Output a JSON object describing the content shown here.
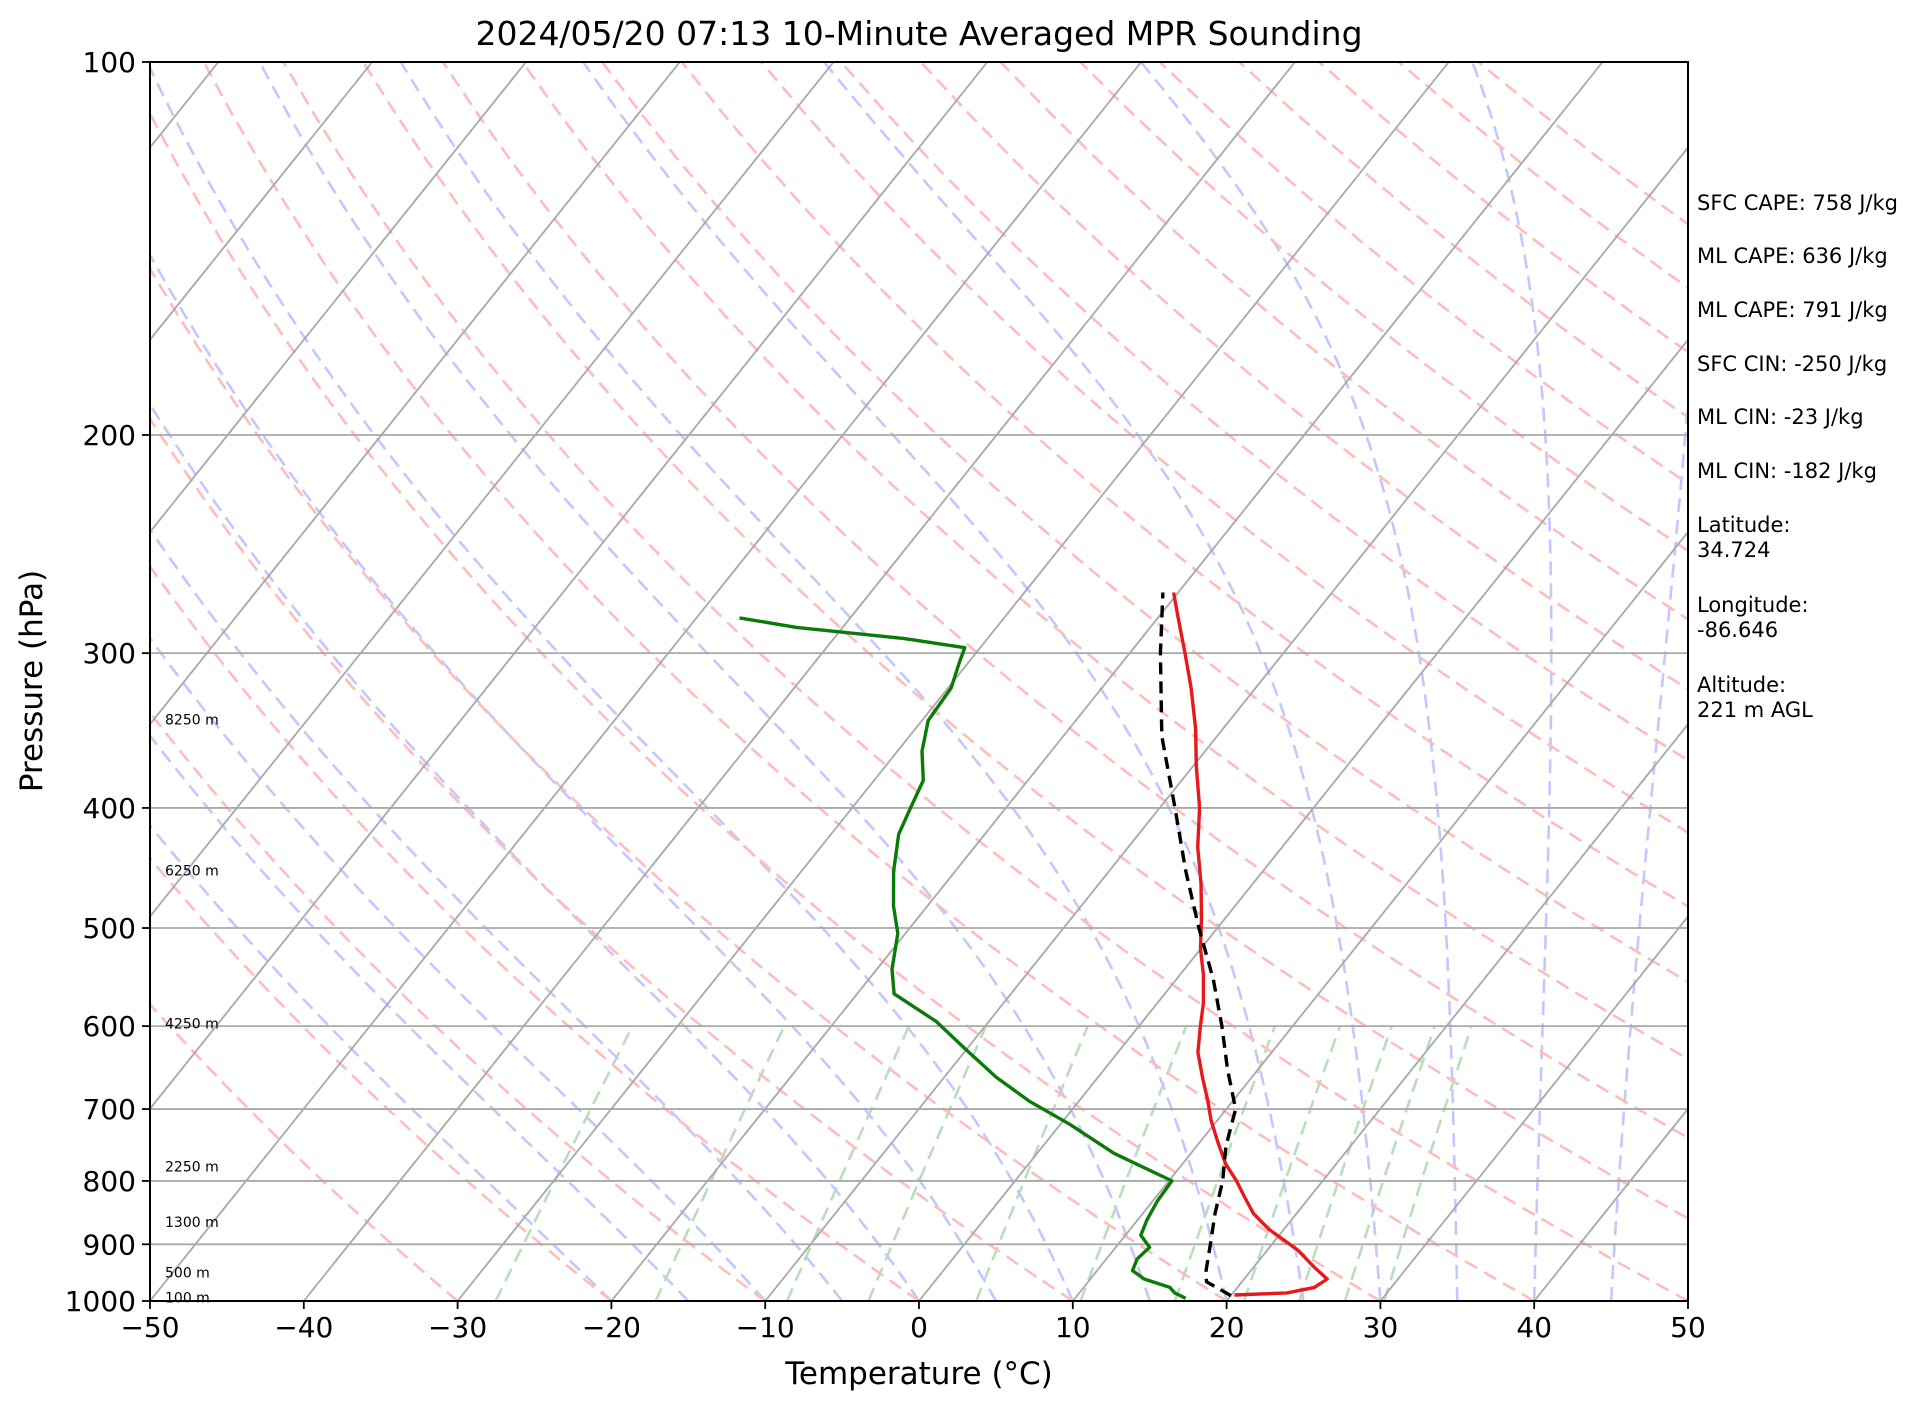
{
  "chart_data": {
    "type": "skew-t",
    "title": "2024/05/20 07:13 10-Minute Averaged MPR Sounding",
    "xlabel": "Temperature (°C)",
    "ylabel": "Pressure (hPa)",
    "xlim": [
      -50,
      50
    ],
    "ylim_hpa": [
      1000,
      100
    ],
    "y_scale": "log",
    "grid": true,
    "x_ticks": [
      "−50",
      "−40",
      "−30",
      "−20",
      "−10",
      "0",
      "10",
      "20",
      "30",
      "40",
      "50"
    ],
    "y_ticks": [
      "100",
      "200",
      "300",
      "400",
      "500",
      "600",
      "700",
      "800",
      "900",
      "1000"
    ],
    "altitude_labels": [
      {
        "p": 995,
        "text": "100 m"
      },
      {
        "p": 950,
        "text": "500 m"
      },
      {
        "p": 865,
        "text": "1300 m"
      },
      {
        "p": 780,
        "text": "2250 m"
      },
      {
        "p": 598,
        "text": "4250 m"
      },
      {
        "p": 450,
        "text": "6250 m"
      },
      {
        "p": 340,
        "text": "8250 m"
      }
    ],
    "series": [
      {
        "name": "Temperature",
        "color": "#e8191b",
        "points": [
          [
            989,
            20.2
          ],
          [
            985,
            23.5
          ],
          [
            975,
            25.0
          ],
          [
            960,
            25.4
          ],
          [
            940,
            24.0
          ],
          [
            910,
            22.0
          ],
          [
            875,
            19.0
          ],
          [
            850,
            17.2
          ],
          [
            825,
            15.8
          ],
          [
            800,
            14.4
          ],
          [
            775,
            12.8
          ],
          [
            745,
            11.2
          ],
          [
            715,
            9.6
          ],
          [
            690,
            8.4
          ],
          [
            660,
            6.8
          ],
          [
            630,
            5.2
          ],
          [
            600,
            4.0
          ],
          [
            575,
            3.0
          ],
          [
            545,
            1.5
          ],
          [
            520,
            0.0
          ],
          [
            490,
            -1.6
          ],
          [
            460,
            -3.4
          ],
          [
            430,
            -5.5
          ],
          [
            400,
            -7.4
          ],
          [
            370,
            -9.8
          ],
          [
            345,
            -11.8
          ],
          [
            320,
            -14.2
          ],
          [
            300,
            -16.4
          ],
          [
            280,
            -18.8
          ],
          [
            268,
            -20.3
          ]
        ]
      },
      {
        "name": "Dewpoint",
        "color": "#0b7a0b",
        "points": [
          [
            995,
            17.2
          ],
          [
            985,
            16.2
          ],
          [
            975,
            15.6
          ],
          [
            960,
            13.5
          ],
          [
            945,
            12.3
          ],
          [
            925,
            12.0
          ],
          [
            905,
            12.2
          ],
          [
            885,
            11.0
          ],
          [
            860,
            10.6
          ],
          [
            830,
            10.3
          ],
          [
            800,
            10.2
          ],
          [
            760,
            5.0
          ],
          [
            720,
            0.6
          ],
          [
            690,
            -3.2
          ],
          [
            660,
            -6.6
          ],
          [
            625,
            -10.2
          ],
          [
            595,
            -13.4
          ],
          [
            565,
            -17.6
          ],
          [
            540,
            -19.0
          ],
          [
            505,
            -20.5
          ],
          [
            480,
            -22.2
          ],
          [
            450,
            -24.0
          ],
          [
            420,
            -25.6
          ],
          [
            400,
            -26.2
          ],
          [
            380,
            -26.8
          ],
          [
            360,
            -28.4
          ],
          [
            340,
            -29.6
          ],
          [
            320,
            -29.8
          ],
          [
            305,
            -30.6
          ],
          [
            297,
            -31.0
          ],
          [
            292,
            -35.4
          ],
          [
            286,
            -43.0
          ],
          [
            281,
            -47.2
          ]
        ]
      },
      {
        "name": "Parcel",
        "color": "#000000",
        "dashed": true,
        "points": [
          [
            990,
            20.0
          ],
          [
            965,
            17.7
          ],
          [
            950,
            17.2
          ],
          [
            900,
            16.0
          ],
          [
            850,
            14.7
          ],
          [
            800,
            13.5
          ],
          [
            750,
            11.9
          ],
          [
            700,
            10.6
          ],
          [
            650,
            8.0
          ],
          [
            600,
            5.4
          ],
          [
            550,
            2.4
          ],
          [
            500,
            -1.2
          ],
          [
            450,
            -5.0
          ],
          [
            400,
            -9.0
          ],
          [
            350,
            -13.6
          ],
          [
            300,
            -18.0
          ],
          [
            268,
            -21.0
          ]
        ]
      }
    ]
  },
  "info_panel": [
    "SFC CAPE: 758 J/kg",
    "ML CAPE: 636 J/kg",
    "ML CAPE: 791 J/kg",
    "SFC CIN: -250 J/kg",
    "ML CIN: -23 J/kg",
    "ML CIN: -182 J/kg",
    "Latitude:",
    "34.724",
    "Longitude:",
    "-86.646",
    "Altitude:",
    "221 m AGL"
  ],
  "colors": {
    "isotherm": "#a9a9a9",
    "isobar": "#a9a9a9",
    "dry_adiabat": "#ffbcbc",
    "moist_adiabat": "#c6c6ff",
    "mixing_ratio": "#b9deb9"
  }
}
